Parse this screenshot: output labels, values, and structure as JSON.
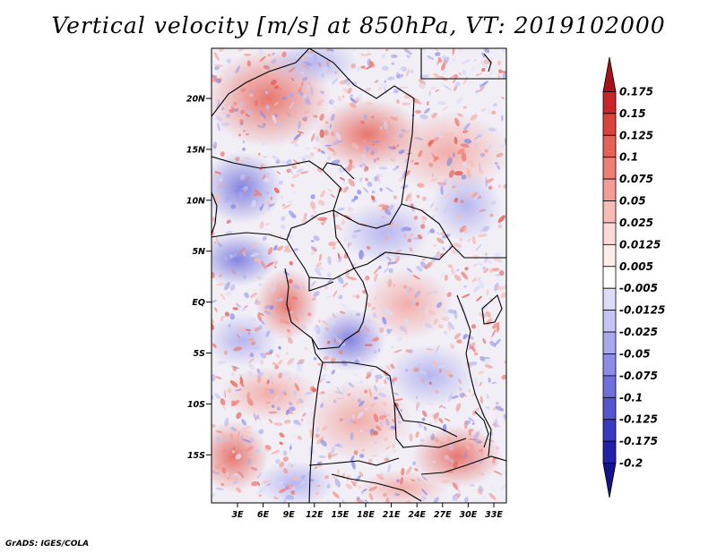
{
  "title": "Vertical velocity [m/s] at 850hPa, VT: 2019102000",
  "credit": "GrADS: IGES/COLA",
  "axes": {
    "lat_labels": [
      "20N",
      "15N",
      "10N",
      "5N",
      "EQ",
      "5S",
      "10S",
      "15S"
    ],
    "lon_labels": [
      "3E",
      "6E",
      "9E",
      "12E",
      "15E",
      "18E",
      "21E",
      "24E",
      "27E",
      "30E",
      "33E"
    ]
  },
  "colorbar": {
    "labels": [
      "0.175",
      "0.15",
      "0.125",
      "0.1",
      "0.075",
      "0.05",
      "0.025",
      "0.0125",
      "0.005",
      "-0.005",
      "-0.0125",
      "-0.025",
      "-0.05",
      "-0.075",
      "-0.1",
      "-0.125",
      "-0.175",
      "-0.2"
    ],
    "colors": [
      "#a8131a",
      "#c8262a",
      "#d9443e",
      "#e66157",
      "#ee7d73",
      "#f39d96",
      "#f8bcb6",
      "#fbd9d6",
      "#fdeeec",
      "#ffffff",
      "#dcdcf8",
      "#c3c3f4",
      "#a8a8ee",
      "#8c8ce6",
      "#7070dc",
      "#5555cf",
      "#3a3ac0",
      "#2222a8",
      "#14148a"
    ]
  },
  "colors": {
    "positive": "#d9443e",
    "negative": "#5555cf",
    "border": "#000000"
  }
}
